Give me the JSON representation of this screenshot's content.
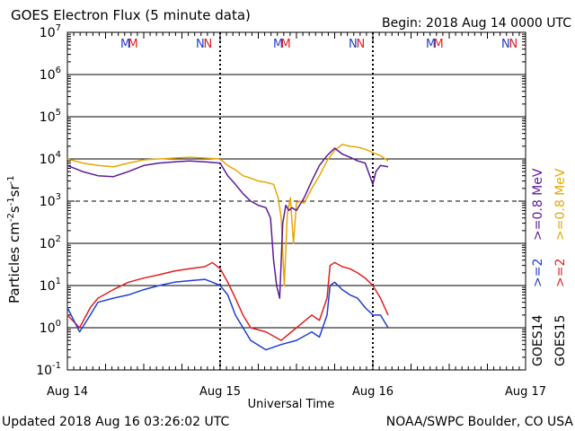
{
  "chart_data": {
    "type": "line",
    "title": "GOES Electron Flux (5 minute data)",
    "begin_label": "Begin: 2018 Aug 14 0000 UTC",
    "xlabel": "Universal Time",
    "ylabel": "Particles cm⁻²s⁻¹sr⁻¹",
    "ylabel_parts": {
      "text": "Particles cm",
      "sup1": "-2",
      "mid1": "s",
      "sup2": "-1",
      "mid2": "sr",
      "sup3": "-1"
    },
    "yscale": "log",
    "ylim": [
      0.1,
      10000000
    ],
    "y_ticks": [
      {
        "base": "10",
        "exp": "-1"
      },
      {
        "base": "10",
        "exp": "0"
      },
      {
        "base": "10",
        "exp": "1"
      },
      {
        "base": "10",
        "exp": "2"
      },
      {
        "base": "10",
        "exp": "3"
      },
      {
        "base": "10",
        "exp": "4"
      },
      {
        "base": "10",
        "exp": "5"
      },
      {
        "base": "10",
        "exp": "6"
      },
      {
        "base": "10",
        "exp": "7"
      }
    ],
    "x_unit": "days since 2018 Aug 14 00 UTC",
    "xlim": [
      0,
      3
    ],
    "x_ticks": [
      {
        "value": 0,
        "label": "Aug 14"
      },
      {
        "value": 1,
        "label": "Aug 15"
      },
      {
        "value": 2,
        "label": "Aug 16"
      },
      {
        "value": 3,
        "label": "Aug 17"
      }
    ],
    "alert_threshold": 1000,
    "day_boundaries": [
      1,
      2
    ],
    "markers": [
      {
        "x": 0.38,
        "label": "M",
        "color": "#1f3fd0"
      },
      {
        "x": 0.43,
        "label": "M",
        "color": "#e02020"
      },
      {
        "x": 0.87,
        "label": "N",
        "color": "#1f3fd0"
      },
      {
        "x": 0.92,
        "label": "N",
        "color": "#e02020"
      },
      {
        "x": 1.38,
        "label": "M",
        "color": "#1f3fd0"
      },
      {
        "x": 1.43,
        "label": "M",
        "color": "#e02020"
      },
      {
        "x": 1.87,
        "label": "N",
        "color": "#1f3fd0"
      },
      {
        "x": 1.92,
        "label": "N",
        "color": "#e02020"
      },
      {
        "x": 2.38,
        "label": "M",
        "color": "#1f3fd0"
      },
      {
        "x": 2.43,
        "label": "M",
        "color": "#e02020"
      },
      {
        "x": 2.87,
        "label": "N",
        "color": "#1f3fd0"
      },
      {
        "x": 2.92,
        "label": "N",
        "color": "#e02020"
      }
    ],
    "series": [
      {
        "name": "GOES15 >=0.8 MeV",
        "color": "#e6a800",
        "x": [
          0,
          0.1,
          0.2,
          0.3,
          0.4,
          0.5,
          0.6,
          0.7,
          0.8,
          0.9,
          1.0,
          1.05,
          1.1,
          1.15,
          1.2,
          1.25,
          1.3,
          1.35,
          1.38,
          1.4,
          1.42,
          1.44,
          1.46,
          1.48,
          1.5,
          1.52,
          1.55,
          1.6,
          1.65,
          1.7,
          1.75,
          1.8,
          1.85,
          1.9,
          1.95,
          2.0,
          2.05,
          2.1
        ],
        "values": [
          10000,
          8000,
          7000,
          6500,
          8000,
          9500,
          10000,
          10500,
          11000,
          10500,
          10000,
          7000,
          5500,
          4000,
          3500,
          3000,
          2800,
          2500,
          1200,
          400,
          10,
          500,
          1200,
          100,
          900,
          1000,
          900,
          2000,
          4000,
          9000,
          16000,
          22000,
          20000,
          19000,
          17000,
          14000,
          12000,
          9000
        ]
      },
      {
        "name": "GOES14 >=0.8 MeV",
        "color": "#5b1a99",
        "x": [
          0,
          0.1,
          0.2,
          0.3,
          0.4,
          0.5,
          0.6,
          0.7,
          0.8,
          0.9,
          1.0,
          1.05,
          1.1,
          1.15,
          1.2,
          1.25,
          1.3,
          1.33,
          1.35,
          1.37,
          1.39,
          1.41,
          1.43,
          1.45,
          1.47,
          1.5,
          1.55,
          1.6,
          1.65,
          1.7,
          1.75,
          1.8,
          1.85,
          1.9,
          1.95,
          2.0,
          2.02,
          2.05,
          2.1
        ],
        "values": [
          7000,
          5000,
          4000,
          3800,
          5000,
          7000,
          8000,
          8500,
          9000,
          8500,
          8000,
          4000,
          2500,
          1500,
          1000,
          800,
          700,
          400,
          40,
          10,
          5,
          300,
          800,
          600,
          700,
          600,
          1200,
          3000,
          7000,
          12000,
          18000,
          13000,
          11000,
          9000,
          8000,
          2500,
          5000,
          7000,
          6500
        ]
      },
      {
        "name": "GOES15 >=2 MeV",
        "color": "#e02020",
        "x": [
          0,
          0.08,
          0.15,
          0.2,
          0.3,
          0.4,
          0.5,
          0.6,
          0.7,
          0.8,
          0.9,
          0.95,
          1.0,
          1.05,
          1.1,
          1.15,
          1.2,
          1.3,
          1.4,
          1.5,
          1.6,
          1.65,
          1.7,
          1.72,
          1.75,
          1.8,
          1.85,
          1.9,
          1.95,
          2.0,
          2.05,
          2.1
        ],
        "values": [
          2,
          1,
          3,
          5,
          8,
          12,
          15,
          18,
          22,
          25,
          28,
          35,
          25,
          12,
          5,
          2,
          1,
          0.8,
          0.5,
          1,
          2,
          1.5,
          5,
          30,
          35,
          28,
          25,
          20,
          15,
          10,
          5,
          2
        ]
      },
      {
        "name": "GOES14 >=2 MeV",
        "color": "#1f3fd0",
        "x": [
          0,
          0.08,
          0.15,
          0.2,
          0.3,
          0.4,
          0.5,
          0.6,
          0.7,
          0.8,
          0.9,
          0.95,
          1.0,
          1.05,
          1.1,
          1.15,
          1.2,
          1.3,
          1.4,
          1.5,
          1.6,
          1.65,
          1.7,
          1.72,
          1.75,
          1.8,
          1.85,
          1.9,
          1.95,
          2.0,
          2.05,
          2.1
        ],
        "values": [
          3,
          0.8,
          2,
          4,
          5,
          6,
          8,
          10,
          12,
          13,
          14,
          12,
          10,
          6,
          2,
          1,
          0.5,
          0.3,
          0.4,
          0.5,
          0.8,
          0.6,
          2,
          10,
          12,
          8,
          6,
          5,
          3,
          2,
          2,
          1
        ]
      }
    ],
    "legend": [
      {
        "text": ">=0.8 MeV",
        "color": "#5b1a99"
      },
      {
        "text": ">=0.8 MeV",
        "color": "#e6a800"
      },
      {
        "text": ">=2",
        "color": "#1f3fd0"
      },
      {
        "text": ">=2",
        "color": "#e02020"
      },
      {
        "text": "GOES14",
        "color": "#000000"
      },
      {
        "text": "GOES15",
        "color": "#000000"
      }
    ]
  },
  "footer": {
    "updated": "Updated 2018 Aug 16 03:26:02 UTC",
    "credit": "NOAA/SWPC Boulder, CO USA"
  }
}
